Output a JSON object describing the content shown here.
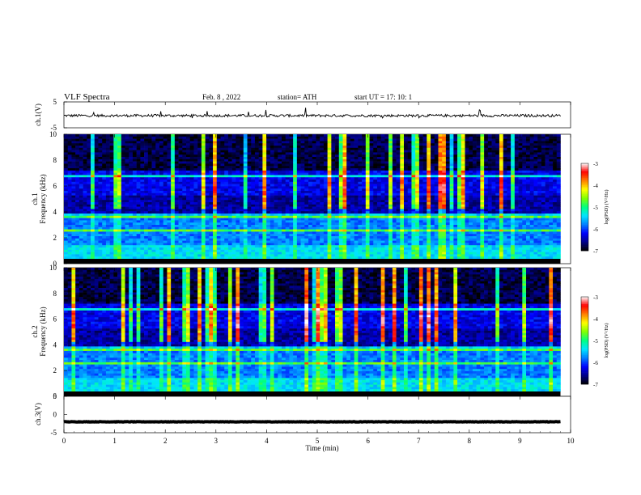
{
  "header": {
    "title": "VLF  Spectra",
    "date": "Feb. 8  , 2022",
    "station": "station= ATH",
    "start": "start  UT  =    17: 10: 1"
  },
  "chart_data": [
    {
      "type": "line",
      "name": "ch1-waveform",
      "ylabel": "ch.1(V)",
      "ylim": [
        -5,
        5
      ],
      "yticks": [
        "5",
        "-5"
      ],
      "xlim": [
        0,
        10
      ],
      "baseline": -0.3,
      "noise": 0.5,
      "color": "#000000"
    },
    {
      "type": "heatmap",
      "name": "ch1-spectrogram",
      "ylabel": "ch.1\nFrequency  (kHz)",
      "ylim": [
        0,
        10
      ],
      "yticks": [
        "0",
        "2",
        "4",
        "6",
        "8",
        "10"
      ],
      "xlim": [
        0,
        9.8
      ],
      "colorbar": {
        "label": "log(PSD) (V²/Hz)",
        "range": [
          -7,
          -3
        ],
        "ticks": [
          "-3",
          "-4",
          "-5",
          "-6",
          "-7"
        ],
        "colors": [
          "#000000",
          "#00008b",
          "#0000ff",
          "#0080ff",
          "#00e5ff",
          "#00ff80",
          "#80ff00",
          "#ffff00",
          "#ff8000",
          "#ff0000",
          "#ffffff"
        ]
      }
    },
    {
      "type": "heatmap",
      "name": "ch2-spectrogram",
      "ylabel": "ch.2\nFrequency  (kHz)",
      "ylim": [
        0,
        10
      ],
      "yticks": [
        "0",
        "2",
        "4",
        "6",
        "8",
        "10"
      ],
      "xlim": [
        0,
        9.8
      ],
      "colorbar": {
        "label": "log(PSD) (V²/Hz)",
        "range": [
          -7,
          -3
        ],
        "ticks": [
          "-3",
          "-4",
          "-5",
          "-6",
          "-7"
        ],
        "colors": [
          "#000000",
          "#00008b",
          "#0000ff",
          "#0080ff",
          "#00e5ff",
          "#00ff80",
          "#80ff00",
          "#ffff00",
          "#ff8000",
          "#ff0000",
          "#ffffff"
        ]
      }
    },
    {
      "type": "line",
      "name": "ch3-waveform",
      "ylabel": "ch.3(V)",
      "ylim": [
        -5,
        5
      ],
      "yticks": [
        "5",
        "0",
        "-5"
      ],
      "xlim": [
        0,
        10
      ],
      "baseline": -2,
      "noise": 0.05,
      "color": "#000000"
    }
  ],
  "xaxis": {
    "label": "Time  (min)",
    "range": [
      0,
      10
    ],
    "ticks": [
      "0",
      "1",
      "2",
      "3",
      "4",
      "5",
      "6",
      "7",
      "8",
      "9",
      "10"
    ]
  }
}
